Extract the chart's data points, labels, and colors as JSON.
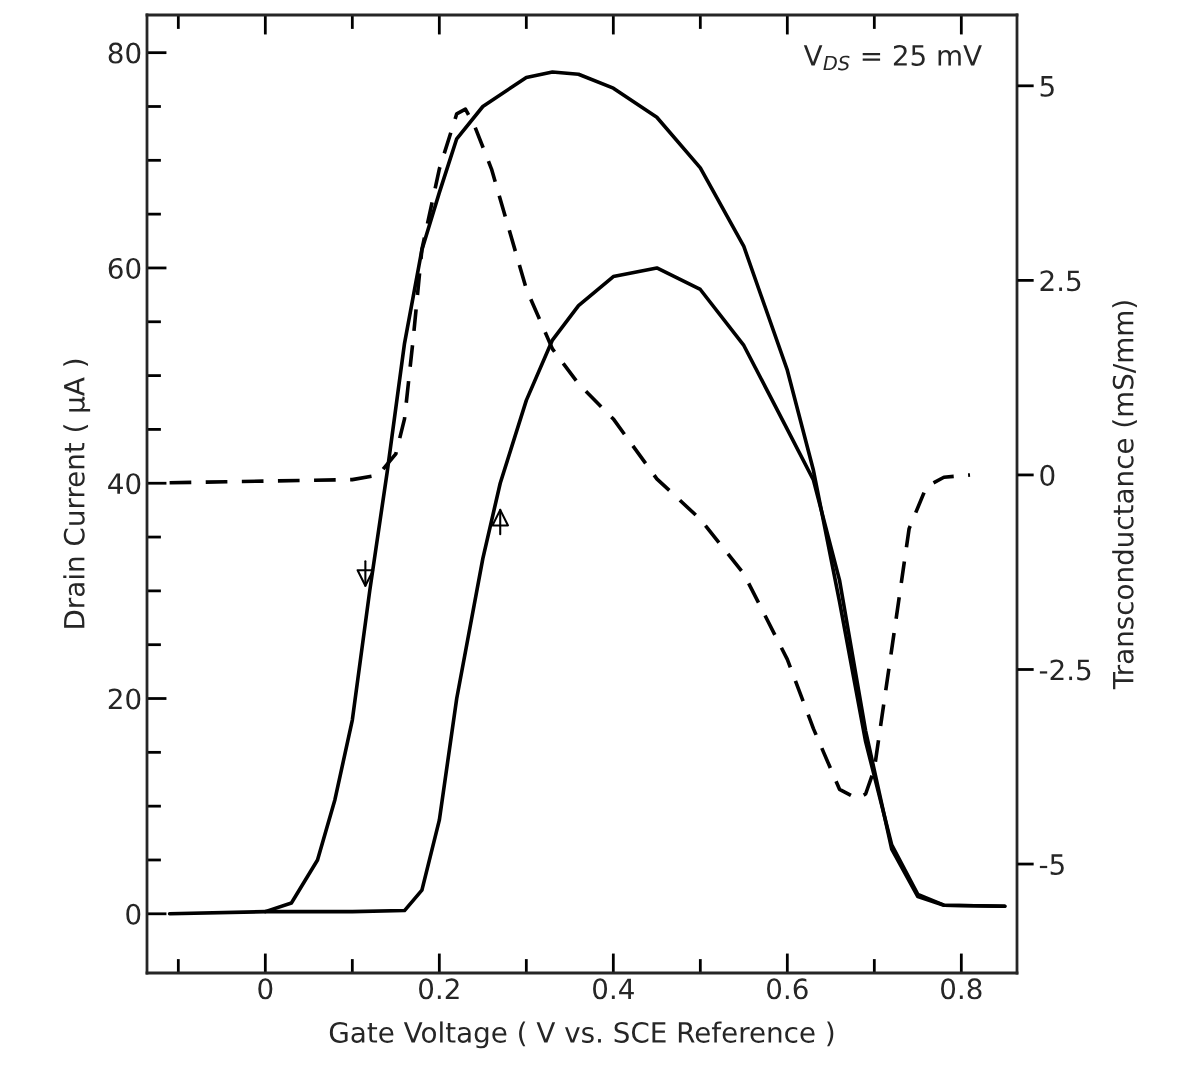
{
  "chart_data": {
    "type": "line",
    "xlabel": "Gate Voltage ( V vs. SCE Reference )",
    "ylabel": "Drain Current ( μA )",
    "y2label": "Transconductance (mS/mm)",
    "annotations": [
      "V$_{DS}$ = 25 mV"
    ],
    "xlim": [
      -0.136,
      0.864
    ],
    "ylim": [
      -5.5,
      83.5
    ],
    "y2lim": [
      -6.4,
      5.91
    ],
    "xticks": [
      {
        "value": -0.1,
        "label": null
      },
      0,
      {
        "value": 0.1,
        "label": null
      },
      0.2,
      {
        "value": 0.3,
        "label": null
      },
      0.4,
      {
        "value": 0.5,
        "label": null
      },
      0.6,
      {
        "value": 0.7,
        "label": null
      },
      0.8
    ],
    "yticks": [
      0,
      {
        "value": 5,
        "label": null
      },
      {
        "value": 10,
        "label": null
      },
      {
        "value": 15,
        "label": null
      },
      20,
      {
        "value": 25,
        "label": null
      },
      {
        "value": 30,
        "label": null
      },
      {
        "value": 35,
        "label": null
      },
      40,
      {
        "value": 45,
        "label": null
      },
      {
        "value": 50,
        "label": null
      },
      {
        "value": 55,
        "label": null
      },
      60,
      {
        "value": 65,
        "label": null
      },
      {
        "value": 70,
        "label": null
      },
      {
        "value": 75,
        "label": null
      },
      80
    ],
    "y2ticks": [
      -5,
      -2.5,
      0,
      2.5,
      5
    ],
    "grid": false,
    "legend": false,
    "marker": "none",
    "series": [
      {
        "color": "#000000",
        "line_style": "solid",
        "x": [
          -0.11,
          0,
          0.03,
          0.06,
          0.08,
          0.1,
          0.12,
          0.14,
          0.16,
          0.18,
          0.2,
          0.22,
          0.25,
          0.3,
          0.33,
          0.36,
          0.4,
          0.45,
          0.5,
          0.55,
          0.6,
          0.63,
          0.66,
          0.69,
          0.72,
          0.75,
          0.78,
          0.85
        ],
        "values": [
          0,
          0.2,
          1,
          5,
          10.6,
          18,
          30,
          41,
          53,
          61.7,
          67,
          72,
          75,
          77.7,
          78.2,
          78,
          76.7,
          74,
          69.3,
          62,
          50.5,
          41.2,
          29,
          16,
          6.4,
          1.8,
          0.8,
          0.7
        ]
      },
      {
        "color": "#000000",
        "line_style": "solid",
        "x": [
          0,
          0.1,
          0.16,
          0.18,
          0.2,
          0.22,
          0.25,
          0.27,
          0.3,
          0.33,
          0.36,
          0.4,
          0.45,
          0.5,
          0.55,
          0.6,
          0.63,
          0.66,
          0.69,
          0.72,
          0.75,
          0.78,
          0.85
        ],
        "values": [
          0.2,
          0.2,
          0.3,
          2.2,
          8.7,
          20,
          33,
          40,
          47.7,
          53.3,
          56.5,
          59.2,
          60,
          58,
          52.8,
          45,
          40.3,
          31,
          17,
          6,
          1.6,
          0.8,
          0.7
        ]
      },
      {
        "color": "#000000",
        "line_style": "dashed",
        "axis": "y2",
        "x": [
          -0.11,
          0.1,
          0.13,
          0.15,
          0.16,
          0.17,
          0.18,
          0.2,
          0.22,
          0.23,
          0.24,
          0.26,
          0.28,
          0.3,
          0.33,
          0.36,
          0.4,
          0.45,
          0.5,
          0.55,
          0.6,
          0.63,
          0.66,
          0.68,
          0.69,
          0.7,
          0.72,
          0.74,
          0.76,
          0.78,
          0.81
        ],
        "values": [
          -0.1,
          -0.06,
          0,
          0.27,
          0.72,
          1.75,
          2.9,
          3.93,
          4.64,
          4.7,
          4.5,
          3.93,
          3.16,
          2.39,
          1.62,
          1.17,
          0.72,
          -0.05,
          -0.57,
          -1.27,
          -2.37,
          -3.26,
          -4.04,
          -4.16,
          -4.1,
          -3.78,
          -2.24,
          -0.69,
          -0.15,
          -0.03,
          0
        ]
      }
    ]
  }
}
